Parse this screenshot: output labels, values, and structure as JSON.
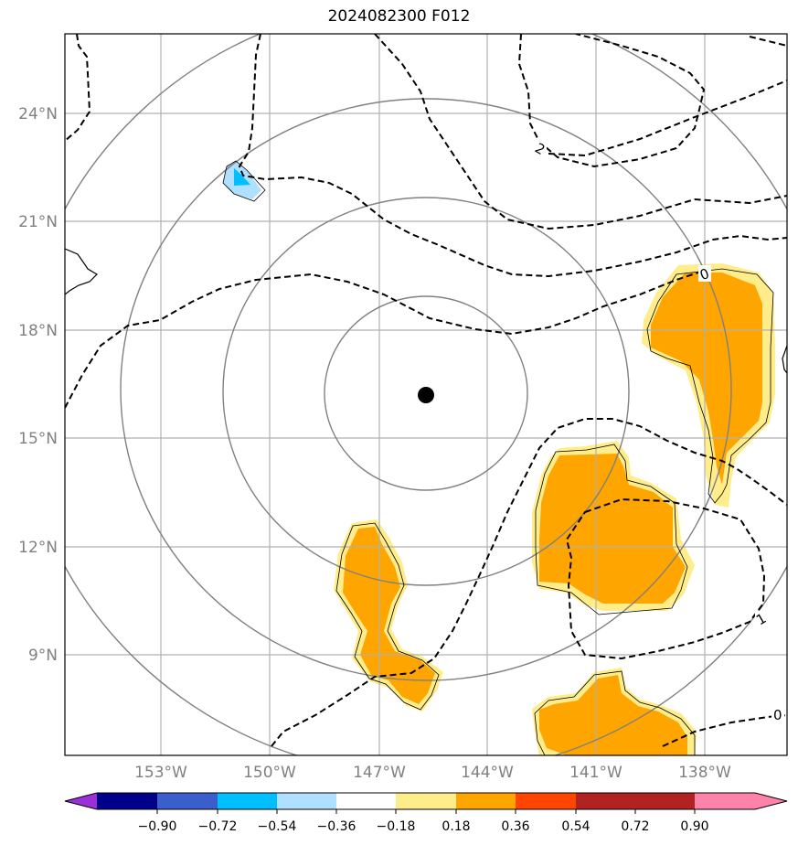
{
  "title": "2024082300 F012",
  "axes": {
    "lon_ticks": [
      "153°W",
      "150°W",
      "147°W",
      "144°W",
      "141°W",
      "138°W"
    ],
    "lat_ticks": [
      "24°N",
      "21°N",
      "18°N",
      "15°N",
      "12°N",
      "9°N"
    ],
    "lon_range": [
      -155.7,
      -135.7
    ],
    "lat_range": [
      6.8,
      26.2
    ],
    "grid": true
  },
  "storm_center": {
    "lon": -145.3,
    "lat": 16.2
  },
  "range_rings": 4,
  "contour_labels": [
    "2",
    "0",
    "1",
    "0"
  ],
  "colorbar": {
    "tick_labels": [
      "−0.90",
      "−0.72",
      "−0.54",
      "−0.36",
      "−0.18",
      "0.18",
      "0.36",
      "0.54",
      "0.72",
      "0.90"
    ],
    "colors": [
      "#9b30d9",
      "#00008b",
      "#3a5fcd",
      "#00bfff",
      "#b0e0ff",
      "#ffffff",
      "#ffec8b",
      "#ffa500",
      "#ff4500",
      "#b22222",
      "#ff82ab"
    ]
  }
}
